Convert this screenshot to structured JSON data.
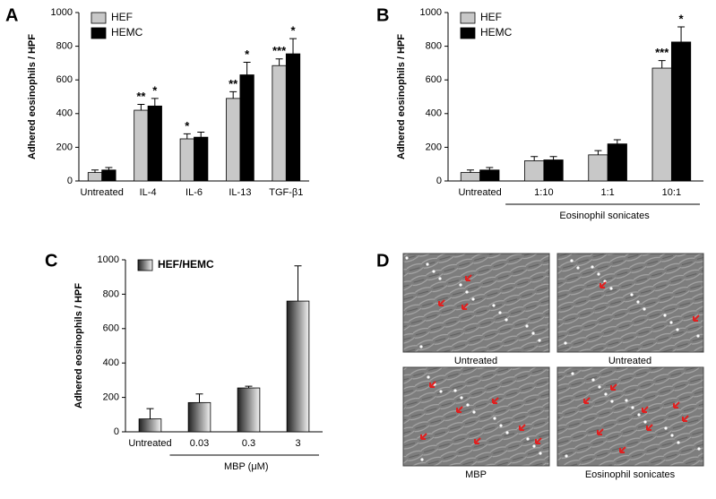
{
  "chart_data": [
    {
      "type": "bar",
      "panel": "A",
      "ylabel": "Adhered eosinophils / HPF",
      "categories": [
        "Untreated",
        "IL-4",
        "IL-6",
        "IL-13",
        "TGF-β1"
      ],
      "series": [
        {
          "name": "HEF",
          "color": "#c8c8c8",
          "values": [
            50,
            420,
            250,
            490,
            685
          ],
          "errors": [
            15,
            35,
            30,
            40,
            40
          ],
          "significance": [
            null,
            "**",
            "*",
            "**",
            "***"
          ]
        },
        {
          "name": "HEMC",
          "color": "#000000",
          "values": [
            65,
            445,
            260,
            630,
            755
          ],
          "errors": [
            15,
            45,
            30,
            75,
            90
          ],
          "significance": [
            null,
            "*",
            null,
            "*",
            "*"
          ]
        }
      ],
      "ylim": [
        0,
        1000
      ],
      "yticks": [
        0,
        200,
        400,
        600,
        800,
        1000
      ],
      "grid": false,
      "legend": "upper left"
    },
    {
      "type": "bar",
      "panel": "B",
      "ylabel": "Adhered eosinophils / HPF",
      "categories": [
        "Untreated",
        "1:10",
        "1:1",
        "10:1"
      ],
      "x_group_label": "Eosinophil sonicates",
      "series": [
        {
          "name": "HEF",
          "color": "#c8c8c8",
          "values": [
            50,
            120,
            155,
            670
          ],
          "errors": [
            15,
            25,
            25,
            45
          ],
          "significance": [
            null,
            null,
            null,
            "***"
          ]
        },
        {
          "name": "HEMC",
          "color": "#000000",
          "values": [
            65,
            125,
            220,
            825
          ],
          "errors": [
            15,
            20,
            25,
            90
          ],
          "significance": [
            null,
            null,
            null,
            "*"
          ]
        }
      ],
      "ylim": [
        0,
        1000
      ],
      "yticks": [
        0,
        200,
        400,
        600,
        800,
        1000
      ],
      "grid": false,
      "legend": "upper left"
    },
    {
      "type": "bar",
      "panel": "C",
      "ylabel": "Adhered eosinophils / HPF",
      "categories": [
        "Untreated",
        "0.03",
        "0.3",
        "3"
      ],
      "x_group_label": "MBP (μM)",
      "series": [
        {
          "name": "HEF/HEMC",
          "color": "#8a8a8a",
          "values": [
            75,
            170,
            255,
            760
          ],
          "errors": [
            60,
            50,
            10,
            205
          ]
        }
      ],
      "ylim": [
        0,
        1000
      ],
      "yticks": [
        0,
        200,
        400,
        600,
        800,
        1000
      ],
      "grid": false,
      "legend": "upper left"
    }
  ],
  "images": {
    "panel": "D",
    "captions": [
      "Untreated",
      "Untreated",
      "MBP",
      "Eosinophil sonicates"
    ]
  }
}
